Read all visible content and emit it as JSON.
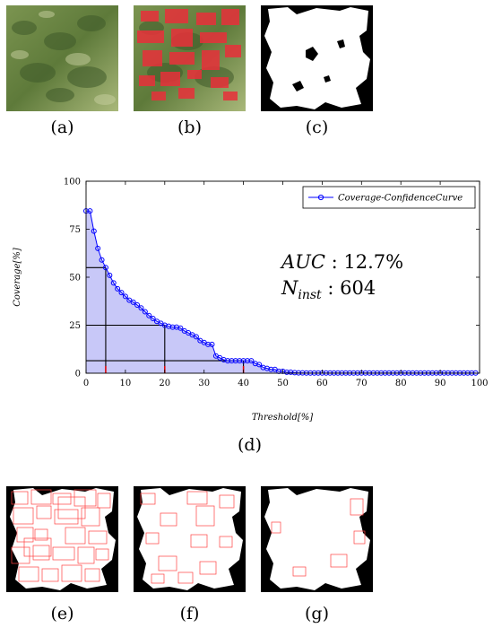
{
  "labels": {
    "a": "(a)",
    "b": "(b)",
    "c": "(c)",
    "d": "(d)",
    "e": "(e)",
    "f": "(f)",
    "g": "(g)"
  },
  "colors": {
    "series": "#0000ff",
    "fill": "#c8c8f8",
    "threshold_tick": "#e00000",
    "mask_bg": "#000000",
    "mask_fg": "#ffffff",
    "box": "#ff4040",
    "vegetation": "#6b8a45",
    "overlay": "#e8303a"
  },
  "chart_data": {
    "type": "line",
    "series": [
      {
        "name": "Coverage-ConfidenceCurve",
        "x": [
          0,
          1,
          2,
          3,
          4,
          5,
          6,
          7,
          8,
          9,
          10,
          11,
          12,
          13,
          14,
          15,
          16,
          17,
          18,
          19,
          20,
          21,
          22,
          23,
          24,
          25,
          26,
          27,
          28,
          29,
          30,
          31,
          32,
          33,
          34,
          35,
          36,
          37,
          38,
          39,
          40,
          41,
          42,
          43,
          44,
          45,
          46,
          47,
          48,
          49,
          50,
          51,
          52,
          53,
          54,
          55,
          56,
          57,
          58,
          59,
          60,
          61,
          62,
          63,
          64,
          65,
          66,
          67,
          68,
          69,
          70,
          71,
          72,
          73,
          74,
          75,
          76,
          77,
          78,
          79,
          80,
          81,
          82,
          83,
          84,
          85,
          86,
          87,
          88,
          89,
          90,
          91,
          92,
          93,
          94,
          95,
          96,
          97,
          98,
          99
        ],
        "y": [
          84.5,
          84.5,
          74,
          65,
          59,
          55,
          51,
          47,
          44,
          42,
          40,
          38,
          37,
          35.5,
          34,
          32,
          30,
          28.5,
          27,
          26,
          25,
          24.5,
          24,
          24,
          23.5,
          22,
          21,
          20,
          19,
          17,
          16,
          15,
          15,
          9,
          8,
          7,
          6.5,
          6.5,
          6.5,
          6.5,
          6.5,
          6.5,
          6.5,
          5,
          4.5,
          3,
          2.5,
          2,
          2,
          1,
          1,
          0.5,
          0.5,
          0.3,
          0.2,
          0.2,
          0.1,
          0.1,
          0.1,
          0.1,
          0.1,
          0.1,
          0.1,
          0.1,
          0.1,
          0.1,
          0.1,
          0.1,
          0.1,
          0.1,
          0.1,
          0.1,
          0.1,
          0.1,
          0.1,
          0.1,
          0.1,
          0.1,
          0.1,
          0.1,
          0.1,
          0.1,
          0.1,
          0.1,
          0.1,
          0.1,
          0.1,
          0.1,
          0.1,
          0.1,
          0.1,
          0.1,
          0.1,
          0.1,
          0.1,
          0.1,
          0.1,
          0.1,
          0.1,
          0.1
        ]
      }
    ],
    "xlabel": "Threshold[%]",
    "ylabel": "Coverage[%]",
    "xlim": [
      0,
      100
    ],
    "ylim": [
      0,
      100
    ],
    "xticks": [
      "0",
      "10",
      "20",
      "30",
      "40",
      "50",
      "60",
      "70",
      "80",
      "90",
      "100"
    ],
    "yticks": [
      "0",
      "25",
      "50",
      "75",
      "100"
    ],
    "grid": false,
    "legend": "top-right",
    "area_fill": true,
    "annotations": {
      "auc_label": "AUC",
      "auc_value": " : 12.7%",
      "ninst_label": "N",
      "ninst_sub": "inst",
      "ninst_value": " : 604"
    },
    "threshold_markers": [
      {
        "x": 5,
        "y": 55
      },
      {
        "x": 20,
        "y": 25
      },
      {
        "x": 40,
        "y": 6.5
      }
    ]
  }
}
